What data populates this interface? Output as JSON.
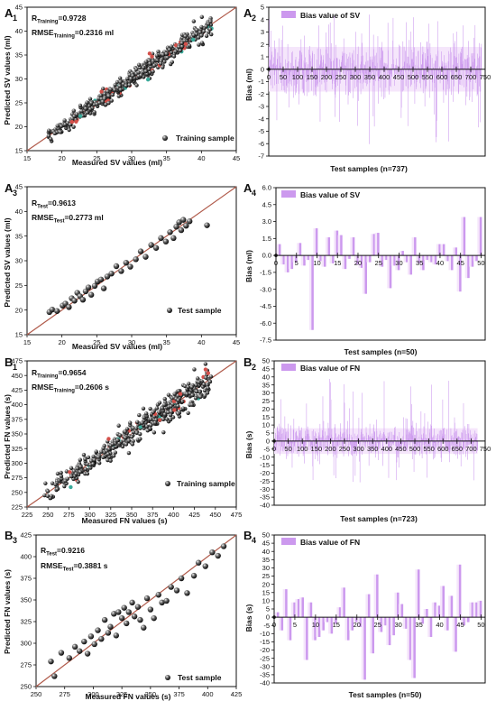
{
  "chart_data": [
    {
      "id": "A1",
      "type": "scatter",
      "panel_letter": "A",
      "panel_sub": "1",
      "xlabel": "Measured SV values (ml)",
      "ylabel": "Predicted SV values (ml)",
      "xlim": [
        15,
        45
      ],
      "ylim": [
        15,
        45
      ],
      "x_ticks": [
        15,
        20,
        25,
        30,
        35,
        40,
        45
      ],
      "y_ticks": [
        15,
        20,
        25,
        30,
        35,
        40,
        45
      ],
      "fit_line": [
        [
          15,
          15
        ],
        [
          45,
          45
        ]
      ],
      "stat_lines": [
        {
          "main": "R",
          "sub": "Training",
          "value": "=0.9728"
        },
        {
          "main": "RMSE",
          "sub": "Training",
          "value": "=0.2316 ml"
        }
      ],
      "legend": "Training sample",
      "series": [
        {
          "name": "Training sample",
          "cloud": {
            "x_range": [
              18,
              41.5
            ],
            "sd": 0.9,
            "count": 737
          }
        }
      ]
    },
    {
      "id": "A2",
      "type": "bar",
      "panel_letter": "A",
      "panel_sub": "2",
      "xlabel": "Test samples (n=737)",
      "ylabel": "Bias (ml)",
      "xlim": [
        0,
        750
      ],
      "ylim": [
        -7,
        5
      ],
      "x_ticks": [
        0,
        50,
        100,
        150,
        200,
        250,
        300,
        350,
        400,
        450,
        500,
        550,
        600,
        650,
        700,
        750
      ],
      "y_ticks": [
        -7,
        -6,
        -5,
        -4,
        -3,
        -2,
        -1,
        0,
        1,
        2,
        3,
        4,
        5
      ],
      "y_tick_labels": [
        "-7",
        "-6",
        "-5",
        "-4",
        "-3",
        "-2",
        "-1",
        "0",
        "1",
        "2",
        "3",
        "4",
        "5"
      ],
      "legend": "Bias value of SV",
      "series": [
        {
          "name": "Bias value of SV",
          "dense": {
            "count": 737,
            "typical": 1.8,
            "max": 4.5,
            "min": -6.3
          }
        }
      ]
    },
    {
      "id": "A3",
      "type": "scatter",
      "panel_letter": "A",
      "panel_sub": "3",
      "xlabel": "Measured SV values (ml)",
      "ylabel": "Predicted SV values (ml)",
      "xlim": [
        15,
        45
      ],
      "ylim": [
        15,
        45
      ],
      "x_ticks": [
        15,
        20,
        25,
        30,
        35,
        40,
        45
      ],
      "y_ticks": [
        15,
        20,
        25,
        30,
        35,
        40,
        45
      ],
      "fit_line": [
        [
          15,
          15
        ],
        [
          45,
          45
        ]
      ],
      "stat_lines": [
        {
          "main": "R",
          "sub": "Test",
          "value": "=0.9613"
        },
        {
          "main": "RMSE",
          "sub": "Test",
          "value": "=0.2773 ml"
        }
      ],
      "legend": "Test sample",
      "series": [
        {
          "name": "Test sample",
          "x": [
            18.2,
            18.6,
            19.3,
            20.1,
            20.5,
            21.0,
            21.4,
            21.8,
            22.2,
            22.6,
            23.0,
            23.4,
            23.8,
            24.2,
            24.7,
            25.1,
            25.6,
            26.0,
            26.5,
            27.1,
            27.8,
            28.5,
            29.2,
            29.8,
            30.6,
            31.3,
            32.0,
            32.8,
            33.5,
            34.2,
            34.9,
            35.5,
            36.0,
            36.4,
            36.8,
            37.1,
            37.4,
            37.8,
            38.3,
            40.8
          ],
          "y": [
            19.6,
            20.1,
            19.8,
            20.9,
            21.3,
            20.6,
            22.4,
            21.9,
            23.5,
            22.8,
            22.1,
            23.8,
            24.6,
            23.1,
            24.9,
            25.8,
            26.2,
            24.4,
            26.8,
            27.4,
            28.9,
            27.9,
            29.6,
            28.8,
            30.3,
            31.9,
            30.8,
            33.2,
            32.6,
            34.6,
            33.9,
            35.8,
            34.6,
            36.9,
            37.8,
            36.2,
            38.3,
            37.1,
            38.0,
            37.2
          ]
        }
      ]
    },
    {
      "id": "A4",
      "type": "bar",
      "panel_letter": "A",
      "panel_sub": "4",
      "xlabel": "Test samples (n=50)",
      "ylabel": "Bias (ml)",
      "xlim": [
        0,
        51
      ],
      "ylim": [
        -7.5,
        6
      ],
      "x_ticks": [
        0,
        5,
        10,
        15,
        20,
        25,
        30,
        35,
        40,
        45,
        50
      ],
      "y_ticks": [
        -7.5,
        -6,
        -4.5,
        -3,
        -1.5,
        0,
        1.5,
        3,
        4.5,
        6
      ],
      "y_tick_labels": [
        "-7.5",
        "-6.0",
        "-4.5",
        "-3.0",
        "-1.5",
        "0.0",
        "1.5",
        "3.0",
        "4.5",
        "6.0"
      ],
      "legend": "Bias value of SV",
      "series": [
        {
          "name": "Bias value of SV",
          "values": [
            1.0,
            -0.8,
            -1.5,
            -1.2,
            -0.6,
            1.1,
            -0.9,
            -0.4,
            -6.6,
            2.4,
            -0.5,
            -1.0,
            1.6,
            -0.7,
            2.2,
            1.8,
            -1.2,
            -0.3,
            1.6,
            -0.8,
            -1.1,
            -3.4,
            -0.6,
            1.9,
            2.0,
            -1.0,
            -0.4,
            -2.9,
            -0.9,
            -1.3,
            0.4,
            -0.6,
            -1.7,
            1.6,
            -0.7,
            -1.3,
            -0.4,
            -0.6,
            -0.8,
            1.0,
            1.0,
            -0.5,
            -1.3,
            0.7,
            -3.2,
            3.4,
            -2.0,
            -1.0,
            -0.5,
            3.4
          ]
        }
      ]
    },
    {
      "id": "B1",
      "type": "scatter",
      "panel_letter": "B",
      "panel_sub": "1",
      "xlabel": "Measured FN values (s)",
      "ylabel": "Predicted FN values (s)",
      "xlim": [
        225,
        475
      ],
      "ylim": [
        225,
        475
      ],
      "x_ticks": [
        225,
        250,
        275,
        300,
        325,
        350,
        375,
        400,
        425,
        450,
        475
      ],
      "y_ticks": [
        225,
        250,
        275,
        300,
        325,
        350,
        375,
        400,
        425,
        450,
        475
      ],
      "fit_line": [
        [
          225,
          225
        ],
        [
          475,
          475
        ]
      ],
      "stat_lines": [
        {
          "main": "R",
          "sub": "Training",
          "value": "=0.9654"
        },
        {
          "main": "RMSE",
          "sub": "Training",
          "value": "=0.2606 s"
        }
      ],
      "legend": "Training sample",
      "series": [
        {
          "name": "Training sample",
          "cloud": {
            "x_range": [
              245,
              445
            ],
            "sd": 10,
            "count": 723
          }
        }
      ]
    },
    {
      "id": "B2",
      "type": "bar",
      "panel_letter": "B",
      "panel_sub": "2",
      "xlabel": "Test samples (n=723)",
      "ylabel": "Bias (s)",
      "xlim": [
        0,
        750
      ],
      "ylim": [
        -40,
        50
      ],
      "x_ticks": [
        0,
        50,
        100,
        150,
        200,
        250,
        300,
        350,
        400,
        450,
        500,
        550,
        600,
        650,
        700,
        750
      ],
      "y_ticks": [
        -40,
        -35,
        -30,
        -25,
        -20,
        -15,
        -10,
        -5,
        0,
        5,
        10,
        15,
        20,
        25,
        30,
        35,
        40,
        45,
        50
      ],
      "y_tick_labels": [
        "-40",
        "-35",
        "-30",
        "-25",
        "-20",
        "-15",
        "-10",
        "-5",
        "0",
        "5",
        "10",
        "15",
        "20",
        "25",
        "30",
        "35",
        "40",
        "45",
        "50"
      ],
      "legend": "Bias value of FN",
      "series": [
        {
          "name": "Bias value of FN",
          "dense": {
            "count": 723,
            "typical": 8,
            "max": 45,
            "min": -26
          }
        }
      ]
    },
    {
      "id": "B3",
      "type": "scatter",
      "panel_letter": "B",
      "panel_sub": "3",
      "xlabel": "Measured FN values (s)",
      "ylabel": "Predicted FN values (s)",
      "xlim": [
        250,
        425
      ],
      "ylim": [
        250,
        425
      ],
      "x_ticks": [
        250,
        275,
        300,
        325,
        350,
        375,
        400,
        425
      ],
      "y_ticks": [
        250,
        275,
        300,
        325,
        350,
        375,
        400,
        425
      ],
      "fit_line": [
        [
          250,
          250
        ],
        [
          425,
          425
        ]
      ],
      "stat_lines": [
        {
          "main": "R",
          "sub": "Test",
          "value": "=0.9216"
        },
        {
          "main": "RMSE",
          "sub": "Test",
          "value": "=0.3881 s"
        }
      ],
      "legend": "Test sample",
      "series": [
        {
          "name": "Test sample",
          "x": [
            263,
            266,
            272,
            279,
            284,
            288,
            292,
            295,
            298,
            301,
            304,
            307,
            310,
            313,
            315,
            318,
            320,
            322,
            325,
            327,
            329,
            331,
            334,
            336,
            339,
            341,
            344,
            347,
            350,
            353,
            357,
            360,
            364,
            368,
            373,
            377,
            382,
            388,
            392,
            398,
            404,
            409,
            414
          ],
          "y": [
            279,
            262,
            289,
            283,
            296,
            291,
            302,
            288,
            308,
            299,
            315,
            305,
            327,
            312,
            319,
            334,
            309,
            336,
            329,
            341,
            323,
            336,
            347,
            331,
            342,
            327,
            318,
            352,
            339,
            329,
            356,
            347,
            349,
            365,
            361,
            375,
            358,
            378,
            393,
            389,
            405,
            401,
            412
          ]
        }
      ]
    },
    {
      "id": "B4",
      "type": "bar",
      "panel_letter": "B",
      "panel_sub": "4",
      "xlabel": "Test samples (n=50)",
      "ylabel": "Bias (s)",
      "xlim": [
        0,
        51
      ],
      "ylim": [
        -40,
        50
      ],
      "x_ticks": [
        0,
        5,
        10,
        15,
        20,
        25,
        30,
        35,
        40,
        45,
        50
      ],
      "y_ticks": [
        -40,
        -35,
        -30,
        -25,
        -20,
        -15,
        -10,
        -5,
        0,
        5,
        10,
        15,
        20,
        25,
        30,
        35,
        40,
        45,
        50
      ],
      "y_tick_labels": [
        "-40",
        "-35",
        "-30",
        "-25",
        "-20",
        "-15",
        "-10",
        "-5",
        "0",
        "5",
        "10",
        "15",
        "20",
        "25",
        "30",
        "35",
        "40",
        "45",
        "50"
      ],
      "legend": "Bias value of FN",
      "series": [
        {
          "name": "Bias value of FN",
          "values": [
            3,
            -8,
            17,
            -14,
            9,
            11,
            12,
            -26,
            9,
            -14,
            -12,
            -8,
            -3,
            -10,
            -4,
            6,
            18,
            -14,
            -8,
            -3,
            -6,
            -38,
            14,
            -22,
            26,
            -9,
            -5,
            -17,
            -11,
            15,
            8,
            -7,
            -26,
            -37,
            29,
            -4,
            5,
            -12,
            9,
            7,
            19,
            -8,
            13,
            -21,
            32,
            -5,
            -3,
            9,
            9,
            10
          ]
        }
      ]
    }
  ],
  "colors": {
    "fit_line": "#b05a4a",
    "bar_fill": "#cc99ee",
    "bar_light": "#f5e6fb",
    "marker": "#111111",
    "marker_accent_red": "#d4504a",
    "marker_accent_teal": "#3aaa9a"
  }
}
